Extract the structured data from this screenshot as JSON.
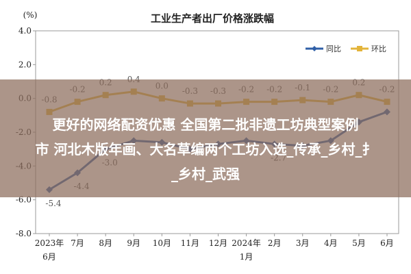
{
  "chart_data": {
    "type": "line",
    "title": "工业生产者出厂价格涨跌幅",
    "yunit": "(%)",
    "ylim": [
      -8.0,
      4.0
    ],
    "yticks": [
      "4.0",
      "2.0",
      "0.0",
      "-2.0",
      "-4.0",
      "-6.0",
      "-8.0"
    ],
    "categories": [
      "2023年6月",
      "7月",
      "8月",
      "9月",
      "10月",
      "11月",
      "12月",
      "2024年1月",
      "2月",
      "3月",
      "4月",
      "5月",
      "6月"
    ],
    "category_lines": [
      [
        "2023年",
        "6月"
      ],
      [
        "7月"
      ],
      [
        "8月"
      ],
      [
        "9月"
      ],
      [
        "10月"
      ],
      [
        "11月"
      ],
      [
        "12月"
      ],
      [
        "2024年",
        "1月"
      ],
      [
        "2月"
      ],
      [
        "3月"
      ],
      [
        "4月"
      ],
      [
        "5月"
      ],
      [
        "6月"
      ]
    ],
    "series": [
      {
        "name": "同比",
        "color": "#2f5fa7",
        "values": [
          -5.4,
          -4.4,
          -3.0,
          -2.5,
          -2.6,
          -3.0,
          -2.7,
          -2.5,
          -2.7,
          -2.8,
          -2.5,
          -1.4,
          -0.8
        ],
        "labels": [
          "-5.4",
          "-4.4",
          "-3.0",
          "",
          "",
          "",
          "",
          "",
          "-2.7",
          "",
          "",
          "",
          ""
        ]
      },
      {
        "name": "环比",
        "color": "#e3b43a",
        "values": [
          -0.8,
          -0.2,
          0.2,
          0.4,
          0.0,
          -0.3,
          -0.3,
          -0.2,
          -0.2,
          -0.1,
          -0.2,
          0.2,
          -0.2
        ],
        "labels": [
          "-0.8",
          "-0.2",
          "0.2",
          "0.4",
          "0.0",
          "-0.3",
          "-0.3",
          "-0.2",
          "-0.2",
          "-0.1",
          "-0.2",
          "0.2",
          "-0.2"
        ]
      }
    ],
    "legend_position": "top-right",
    "grid": false
  },
  "overlay": {
    "line1": "更好的网络配资优惠 全国第二批非遗工坊典型案例",
    "line2": "市 河北木版年画、大名草编两个工坊入选_传承_乡村_扌",
    "line3": "_乡村_武强"
  }
}
